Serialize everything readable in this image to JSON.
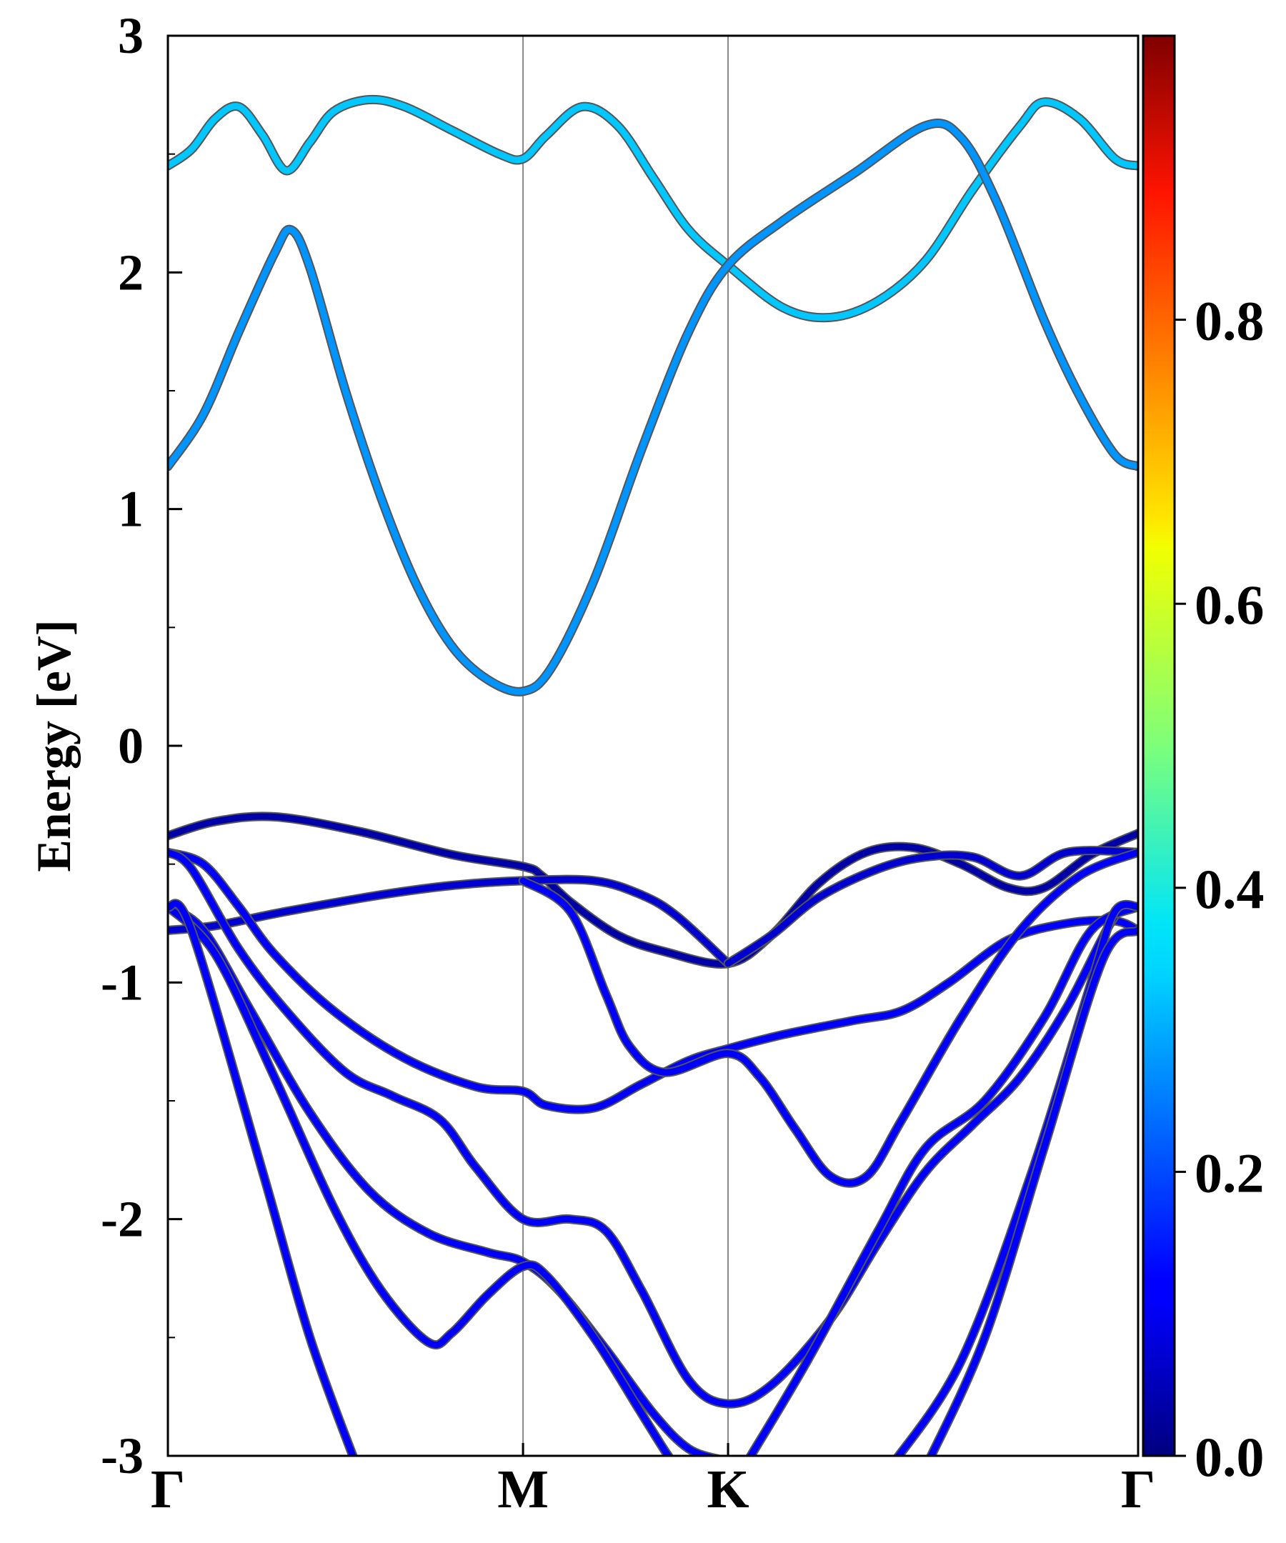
{
  "chart_data": {
    "type": "line",
    "subtype": "band-structure",
    "ylabel": "Energy [eV]",
    "xlabel": "",
    "ylim": [
      -3,
      3
    ],
    "yticks": [
      -3,
      -2,
      -1,
      0,
      1,
      2,
      3
    ],
    "ytick_labels": [
      "-3",
      "-2",
      "-1",
      "0",
      "1",
      "2",
      "3"
    ],
    "x_ticks": [
      {
        "label": "Γ",
        "k": 0.0
      },
      {
        "label": "M",
        "k": 1.5
      },
      {
        "label": "K",
        "k": 2.366
      },
      {
        "label": "Γ",
        "k": 4.098
      }
    ],
    "xlim": [
      0,
      4.098
    ],
    "grid": false,
    "colorbar": {
      "colormap": "jet",
      "range": [
        0,
        1
      ],
      "ticks": [
        0.0,
        0.2,
        0.4,
        0.6,
        0.8
      ],
      "tick_labels": [
        "0.0",
        "0.2",
        "0.4",
        "0.6",
        "0.8"
      ]
    },
    "series": [
      {
        "weight": 0.32,
        "points": [
          [
            0,
            2.45
          ],
          [
            0.1,
            2.52
          ],
          [
            0.2,
            2.65
          ],
          [
            0.3,
            2.7
          ],
          [
            0.4,
            2.58
          ],
          [
            0.5,
            2.43
          ],
          [
            0.6,
            2.55
          ],
          [
            0.7,
            2.68
          ],
          [
            0.85,
            2.73
          ],
          [
            1.0,
            2.7
          ],
          [
            1.2,
            2.6
          ],
          [
            1.4,
            2.5
          ],
          [
            1.5,
            2.48
          ],
          [
            1.6,
            2.58
          ],
          [
            1.75,
            2.7
          ],
          [
            1.9,
            2.62
          ],
          [
            2.05,
            2.4
          ],
          [
            2.2,
            2.18
          ],
          [
            2.366,
            2.03
          ],
          [
            2.6,
            1.85
          ],
          [
            2.8,
            1.81
          ],
          [
            3.0,
            1.88
          ],
          [
            3.2,
            2.05
          ],
          [
            3.4,
            2.35
          ],
          [
            3.6,
            2.62
          ],
          [
            3.7,
            2.72
          ],
          [
            3.85,
            2.65
          ],
          [
            4.0,
            2.48
          ],
          [
            4.098,
            2.45
          ]
        ]
      },
      {
        "weight": 0.27,
        "points": [
          [
            0,
            1.18
          ],
          [
            0.15,
            1.4
          ],
          [
            0.3,
            1.75
          ],
          [
            0.45,
            2.08
          ],
          [
            0.52,
            2.18
          ],
          [
            0.6,
            2.02
          ],
          [
            0.75,
            1.5
          ],
          [
            0.9,
            1.05
          ],
          [
            1.05,
            0.68
          ],
          [
            1.2,
            0.42
          ],
          [
            1.35,
            0.28
          ],
          [
            1.5,
            0.23
          ],
          [
            1.62,
            0.33
          ],
          [
            1.8,
            0.7
          ],
          [
            2.0,
            1.25
          ],
          [
            2.2,
            1.75
          ],
          [
            2.366,
            2.03
          ],
          [
            2.6,
            2.22
          ],
          [
            2.9,
            2.42
          ],
          [
            3.2,
            2.62
          ],
          [
            3.35,
            2.57
          ],
          [
            3.5,
            2.3
          ],
          [
            3.7,
            1.8
          ],
          [
            3.85,
            1.48
          ],
          [
            4.0,
            1.23
          ],
          [
            4.098,
            1.18
          ]
        ]
      },
      {
        "weight": 0.04,
        "points": [
          [
            0,
            -0.38
          ],
          [
            0.2,
            -0.32
          ],
          [
            0.45,
            -0.3
          ],
          [
            0.8,
            -0.36
          ],
          [
            1.2,
            -0.46
          ],
          [
            1.5,
            -0.51
          ],
          [
            1.58,
            -0.55
          ],
          [
            1.7,
            -0.66
          ],
          [
            1.9,
            -0.8
          ],
          [
            2.1,
            -0.87
          ],
          [
            2.366,
            -0.92
          ],
          [
            2.55,
            -0.8
          ],
          [
            2.75,
            -0.58
          ],
          [
            2.95,
            -0.45
          ],
          [
            3.15,
            -0.43
          ],
          [
            3.35,
            -0.5
          ],
          [
            3.55,
            -0.6
          ],
          [
            3.7,
            -0.6
          ],
          [
            3.9,
            -0.46
          ],
          [
            4.098,
            -0.37
          ]
        ]
      },
      {
        "weight": 0.08,
        "points": [
          [
            0,
            -0.78
          ],
          [
            0.2,
            -0.76
          ],
          [
            0.5,
            -0.7
          ],
          [
            0.9,
            -0.63
          ],
          [
            1.2,
            -0.59
          ],
          [
            1.5,
            -0.57
          ],
          [
            1.8,
            -0.57
          ],
          [
            2.0,
            -0.63
          ],
          [
            2.15,
            -0.72
          ],
          [
            2.366,
            -0.92
          ]
        ]
      },
      {
        "weight": 0.08,
        "points": [
          [
            2.366,
            -0.92
          ],
          [
            2.55,
            -0.8
          ],
          [
            2.75,
            -0.64
          ],
          [
            3.0,
            -0.52
          ],
          [
            3.2,
            -0.47
          ],
          [
            3.4,
            -0.47
          ],
          [
            3.6,
            -0.55
          ],
          [
            3.8,
            -0.45
          ],
          [
            4.098,
            -0.45
          ]
        ]
      },
      {
        "weight": 0.12,
        "points": [
          [
            0,
            -0.45
          ],
          [
            0.15,
            -0.5
          ],
          [
            0.3,
            -0.68
          ],
          [
            0.45,
            -0.88
          ],
          [
            0.7,
            -1.12
          ],
          [
            1.0,
            -1.32
          ],
          [
            1.3,
            -1.44
          ],
          [
            1.5,
            -1.46
          ],
          [
            1.6,
            -1.52
          ],
          [
            1.8,
            -1.53
          ],
          [
            2.0,
            -1.43
          ],
          [
            2.2,
            -1.33
          ],
          [
            2.366,
            -1.28
          ],
          [
            2.6,
            -1.22
          ],
          [
            2.9,
            -1.16
          ],
          [
            3.1,
            -1.12
          ],
          [
            3.3,
            -1.0
          ],
          [
            3.55,
            -0.82
          ],
          [
            3.8,
            -0.75
          ],
          [
            4.0,
            -0.74
          ],
          [
            4.098,
            -0.78
          ]
        ]
      },
      {
        "weight": 0.12,
        "points": [
          [
            1.5,
            -0.57
          ],
          [
            1.7,
            -0.7
          ],
          [
            1.85,
            -1.05
          ],
          [
            1.95,
            -1.27
          ],
          [
            2.1,
            -1.38
          ],
          [
            2.366,
            -1.3
          ],
          [
            2.5,
            -1.4
          ],
          [
            2.65,
            -1.62
          ],
          [
            2.8,
            -1.82
          ],
          [
            2.95,
            -1.82
          ],
          [
            3.1,
            -1.58
          ],
          [
            3.35,
            -1.15
          ],
          [
            3.6,
            -0.78
          ],
          [
            3.85,
            -0.55
          ],
          [
            4.098,
            -0.45
          ]
        ]
      },
      {
        "weight": 0.12,
        "points": [
          [
            0,
            -0.45
          ],
          [
            0.1,
            -0.52
          ],
          [
            0.3,
            -0.86
          ],
          [
            0.5,
            -1.12
          ],
          [
            0.75,
            -1.38
          ],
          [
            0.95,
            -1.48
          ],
          [
            1.15,
            -1.58
          ],
          [
            1.3,
            -1.78
          ],
          [
            1.5,
            -2.0
          ],
          [
            1.7,
            -2.0
          ],
          [
            1.85,
            -2.05
          ],
          [
            2.0,
            -2.3
          ],
          [
            2.2,
            -2.68
          ],
          [
            2.366,
            -2.78
          ],
          [
            2.55,
            -2.7
          ],
          [
            2.8,
            -2.42
          ],
          [
            3.0,
            -2.1
          ],
          [
            3.2,
            -1.8
          ],
          [
            3.4,
            -1.6
          ],
          [
            3.6,
            -1.4
          ],
          [
            3.8,
            -1.1
          ],
          [
            4.0,
            -0.72
          ],
          [
            4.098,
            -0.68
          ]
        ]
      },
      {
        "weight": 0.12,
        "points": [
          [
            0,
            -0.68
          ],
          [
            0.15,
            -0.78
          ],
          [
            0.35,
            -1.12
          ],
          [
            0.6,
            -1.55
          ],
          [
            0.85,
            -1.88
          ],
          [
            1.1,
            -2.06
          ],
          [
            1.35,
            -2.14
          ],
          [
            1.5,
            -2.18
          ],
          [
            1.65,
            -2.3
          ],
          [
            1.85,
            -2.55
          ],
          [
            2.05,
            -2.82
          ],
          [
            2.2,
            -2.97
          ],
          [
            2.35,
            -3.02
          ]
        ]
      },
      {
        "weight": 0.12,
        "points": [
          [
            0,
            -0.68
          ],
          [
            0.2,
            -0.88
          ],
          [
            0.45,
            -1.4
          ],
          [
            0.7,
            -1.95
          ],
          [
            0.9,
            -2.3
          ],
          [
            1.1,
            -2.52
          ],
          [
            1.2,
            -2.48
          ],
          [
            1.35,
            -2.32
          ],
          [
            1.5,
            -2.2
          ],
          [
            1.6,
            -2.24
          ],
          [
            1.8,
            -2.5
          ],
          [
            2.0,
            -2.82
          ],
          [
            2.1,
            -2.98
          ],
          [
            2.15,
            -3.05
          ]
        ]
      },
      {
        "weight": 0.12,
        "points": [
          [
            2.45,
            -3.02
          ],
          [
            2.7,
            -2.6
          ],
          [
            3.0,
            -2.05
          ],
          [
            3.2,
            -1.7
          ],
          [
            3.45,
            -1.5
          ],
          [
            3.7,
            -1.15
          ],
          [
            3.9,
            -0.78
          ],
          [
            4.098,
            -0.68
          ]
        ]
      },
      {
        "weight": 0.12,
        "points": [
          [
            0,
            -0.68
          ],
          [
            0.1,
            -0.78
          ],
          [
            0.4,
            -1.8
          ],
          [
            0.6,
            -2.5
          ],
          [
            0.8,
            -3.05
          ]
        ]
      },
      {
        "weight": 0.12,
        "points": [
          [
            3.05,
            -3.05
          ],
          [
            3.35,
            -2.6
          ],
          [
            3.65,
            -1.8
          ],
          [
            3.9,
            -1.0
          ],
          [
            4.0,
            -0.7
          ],
          [
            4.098,
            -0.68
          ]
        ]
      },
      {
        "weight": 0.12,
        "points": [
          [
            3.2,
            -3.05
          ],
          [
            3.45,
            -2.5
          ],
          [
            3.7,
            -1.7
          ],
          [
            3.95,
            -0.9
          ],
          [
            4.098,
            -0.78
          ]
        ]
      }
    ]
  }
}
